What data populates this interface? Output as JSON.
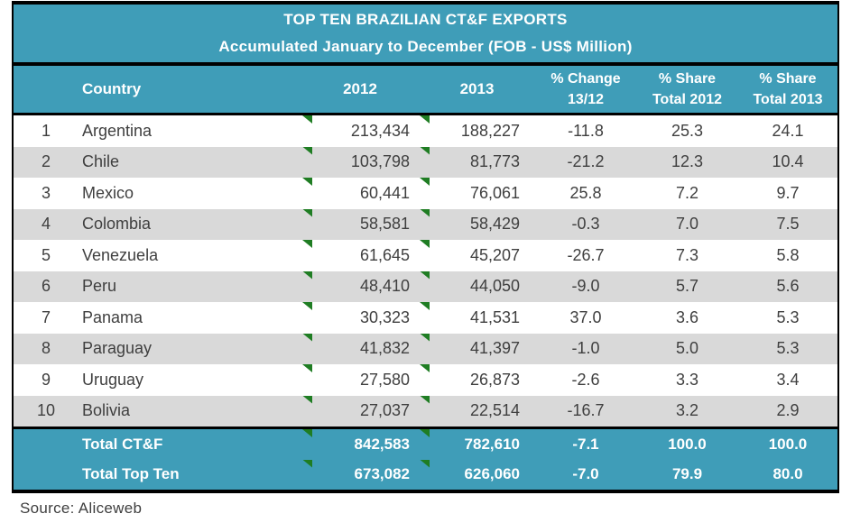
{
  "chart_data": {
    "type": "table",
    "title": "TOP TEN BRAZILIAN CT&F EXPORTS",
    "subtitle": "Accumulated January to December (FOB - US$ Million)",
    "columns": [
      "",
      "Country",
      "2012",
      "2013",
      "% Change 13/12",
      "% Share Total 2012",
      "% Share Total 2013"
    ],
    "rows": [
      {
        "rank": "1",
        "country": "Argentina",
        "y2012": "213,434",
        "y2013": "188,227",
        "change": "-11.8",
        "share2012": "25.3",
        "share2013": "24.1"
      },
      {
        "rank": "2",
        "country": "Chile",
        "y2012": "103,798",
        "y2013": "81,773",
        "change": "-21.2",
        "share2012": "12.3",
        "share2013": "10.4"
      },
      {
        "rank": "3",
        "country": "Mexico",
        "y2012": "60,441",
        "y2013": "76,061",
        "change": "25.8",
        "share2012": "7.2",
        "share2013": "9.7"
      },
      {
        "rank": "4",
        "country": "Colombia",
        "y2012": "58,581",
        "y2013": "58,429",
        "change": "-0.3",
        "share2012": "7.0",
        "share2013": "7.5"
      },
      {
        "rank": "5",
        "country": "Venezuela",
        "y2012": "61,645",
        "y2013": "45,207",
        "change": "-26.7",
        "share2012": "7.3",
        "share2013": "5.8"
      },
      {
        "rank": "6",
        "country": "Peru",
        "y2012": "48,410",
        "y2013": "44,050",
        "change": "-9.0",
        "share2012": "5.7",
        "share2013": "5.6"
      },
      {
        "rank": "7",
        "country": "Panama",
        "y2012": "30,323",
        "y2013": "41,531",
        "change": "37.0",
        "share2012": "3.6",
        "share2013": "5.3"
      },
      {
        "rank": "8",
        "country": "Paraguay",
        "y2012": "41,832",
        "y2013": "41,397",
        "change": "-1.0",
        "share2012": "5.0",
        "share2013": "5.3"
      },
      {
        "rank": "9",
        "country": "Uruguay",
        "y2012": "27,580",
        "y2013": "26,873",
        "change": "-2.6",
        "share2012": "3.3",
        "share2013": "3.4"
      },
      {
        "rank": "10",
        "country": "Bolivia",
        "y2012": "27,037",
        "y2013": "22,514",
        "change": "-16.7",
        "share2012": "3.2",
        "share2013": "2.9"
      }
    ],
    "totals": [
      {
        "label": "Total CT&F",
        "y2012": "842,583",
        "y2013": "782,610",
        "change": "-7.1",
        "share2012": "100.0",
        "share2013": "100.0"
      },
      {
        "label": "Total Top Ten",
        "y2012": "673,082",
        "y2013": "626,060",
        "change": "-7.0",
        "share2012": "79.9",
        "share2013": "80.0"
      }
    ],
    "source": "Source: Aliceweb",
    "layout_hints": {
      "striped_rows": true,
      "stripe_start_row": 2,
      "flag_markers_on_value_cells": true
    }
  },
  "header": {
    "country": "Country",
    "y2012": "2012",
    "y2013": "2013",
    "change_line1": "% Change",
    "change_line2": "13/12",
    "share2012_line1": "% Share",
    "share2012_line2": "Total 2012",
    "share2013_line1": "% Share",
    "share2013_line2": "Total 2013"
  },
  "colors": {
    "teal_header": "#3f9db8",
    "row_stripe": "#d9d9d9",
    "flag_green": "#1f7d23",
    "text": "#3f3f3f",
    "rule_black": "#000000",
    "header_text": "#ffffff"
  },
  "icons": {
    "cell_flag": "green-corner-flag"
  }
}
